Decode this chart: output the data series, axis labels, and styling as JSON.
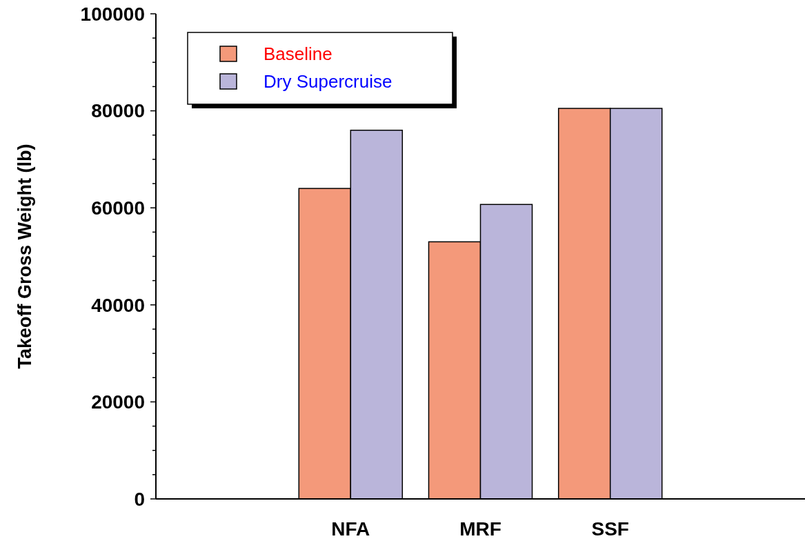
{
  "chart_data": {
    "type": "bar",
    "ylabel": "Takeoff Gross Weight (lb)",
    "categories": [
      null,
      "NFA",
      "MRF",
      "SSF",
      null
    ],
    "series": [
      {
        "name": "Baseline",
        "color": "#f4997a",
        "values": [
          null,
          64000,
          53000,
          80500,
          null
        ]
      },
      {
        "name": "Dry Supercruise",
        "color": "#bab5da",
        "values": [
          null,
          76000,
          60700,
          80500,
          null
        ]
      }
    ],
    "ylim": [
      0,
      100000
    ],
    "yticks": [
      0,
      {
        "value": 5000,
        "label": null
      },
      {
        "value": 10000,
        "label": null
      },
      {
        "value": 15000,
        "label": null
      },
      20000,
      {
        "value": 25000,
        "label": null
      },
      {
        "value": 30000,
        "label": null
      },
      {
        "value": 35000,
        "label": null
      },
      40000,
      {
        "value": 45000,
        "label": null
      },
      {
        "value": 50000,
        "label": null
      },
      {
        "value": 55000,
        "label": null
      },
      60000,
      {
        "value": 65000,
        "label": null
      },
      {
        "value": 70000,
        "label": null
      },
      {
        "value": 75000,
        "label": null
      },
      80000,
      {
        "value": 85000,
        "label": null
      },
      {
        "value": 90000,
        "label": null
      },
      {
        "value": 95000,
        "label": null
      },
      100000
    ],
    "legend": "top left",
    "grid": false
  }
}
